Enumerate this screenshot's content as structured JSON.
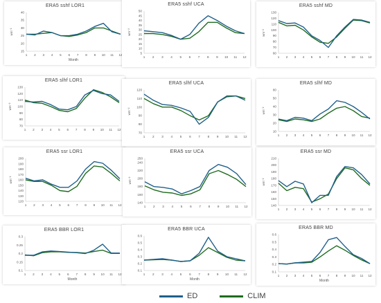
{
  "colors": {
    "ED": "#1f5f8b",
    "CLIM": "#1e6b1e"
  },
  "legend": [
    {
      "name": "ED",
      "color": "#1f5f8b"
    },
    {
      "name": "CLIM",
      "color": "#1e6b1e"
    }
  ],
  "chart_data": [
    {
      "type": "line",
      "title": "ERA5 sshf LOR1",
      "xlabel": "Month",
      "ylabel": "wm⁻²",
      "x": [
        1,
        2,
        3,
        4,
        5,
        6,
        7,
        8,
        9,
        10,
        11,
        12
      ],
      "ylim": [
        15,
        40
      ],
      "yticks": [
        "15",
        "20",
        "25",
        "30",
        "35",
        "40"
      ],
      "grid": false,
      "series": [
        {
          "name": "ED",
          "values": [
            26,
            25.5,
            28,
            27,
            25,
            25,
            26,
            28,
            31,
            33,
            27.5,
            26
          ]
        },
        {
          "name": "CLIM",
          "values": [
            26,
            26,
            26.5,
            27,
            25,
            24.5,
            25.5,
            27,
            30,
            30,
            28,
            26
          ]
        }
      ]
    },
    {
      "type": "line",
      "title": "ERA5 sshf UCA",
      "xlabel": "",
      "ylabel": "wm⁻²",
      "x": [
        1,
        2,
        3,
        4,
        5,
        6,
        7,
        8,
        9,
        10,
        11,
        12
      ],
      "ylim": [
        5,
        50
      ],
      "yticks": [
        "5",
        "10",
        "15",
        "20",
        "25",
        "30",
        "35",
        "40",
        "45",
        "50"
      ],
      "grid": false,
      "series": [
        {
          "name": "ED",
          "values": [
            29,
            28,
            27,
            24,
            20,
            25,
            37,
            45,
            40,
            34,
            29,
            26
          ]
        },
        {
          "name": "CLIM",
          "values": [
            26,
            26,
            25,
            23,
            20,
            21,
            28,
            38,
            38,
            32,
            27,
            26
          ]
        }
      ]
    },
    {
      "type": "line",
      "title": "ERA5 sshf MD",
      "xlabel": "",
      "ylabel": "wm⁻²",
      "x": [
        1,
        2,
        3,
        4,
        5,
        6,
        7,
        8,
        9,
        10,
        11,
        12
      ],
      "ylim": [
        60,
        130
      ],
      "yticks": [
        "60",
        "70",
        "80",
        "90",
        "100",
        "110",
        "120",
        "130"
      ],
      "grid": false,
      "series": [
        {
          "name": "ED",
          "values": [
            116,
            111,
            112,
            105,
            90,
            82,
            70,
            90,
            105,
            118,
            117,
            113
          ]
        },
        {
          "name": "CLIM",
          "values": [
            113,
            107,
            108,
            100,
            88,
            79,
            77,
            88,
            103,
            117,
            116,
            112
          ]
        }
      ]
    },
    {
      "type": "line",
      "title": "ERA5 slhf LOR1",
      "xlabel": "",
      "ylabel": "wm⁻²",
      "x": [
        1,
        2,
        3,
        4,
        5,
        6,
        7,
        8,
        9,
        10,
        11,
        12
      ],
      "ylim": [
        70,
        130
      ],
      "yticks": [
        "70",
        "80",
        "90",
        "100",
        "110",
        "120",
        "130"
      ],
      "grid": false,
      "series": [
        {
          "name": "ED",
          "values": [
            108,
            107,
            108,
            103,
            96,
            95,
            100,
            118,
            125,
            120,
            118,
            108
          ]
        },
        {
          "name": "CLIM",
          "values": [
            110,
            106,
            105,
            100,
            94,
            92,
            97,
            113,
            126,
            122,
            115,
            106
          ]
        }
      ]
    },
    {
      "type": "line",
      "title": "ERA5 slhf UCA",
      "xlabel": "",
      "ylabel": "wm⁻²",
      "x": [
        1,
        2,
        3,
        4,
        5,
        6,
        7,
        8,
        9,
        10,
        11,
        12
      ],
      "ylim": [
        70,
        120
      ],
      "yticks": [
        "70",
        "80",
        "90",
        "100",
        "110",
        "120"
      ],
      "grid": false,
      "series": [
        {
          "name": "ED",
          "values": [
            115,
            108,
            103,
            102,
            99,
            95,
            80,
            88,
            106,
            113,
            113,
            108
          ]
        },
        {
          "name": "CLIM",
          "values": [
            110,
            104,
            100,
            100,
            96,
            90,
            85,
            90,
            106,
            112,
            113,
            110
          ]
        }
      ]
    },
    {
      "type": "line",
      "title": "ERA5 slhf MD",
      "xlabel": "",
      "ylabel": "wm⁻²",
      "x": [
        1,
        2,
        3,
        4,
        5,
        6,
        7,
        8,
        9,
        10,
        11,
        12
      ],
      "ylim": [
        10,
        60
      ],
      "yticks": [
        "10",
        "20",
        "30",
        "40",
        "50",
        "60"
      ],
      "grid": false,
      "series": [
        {
          "name": "ED",
          "values": [
            25,
            23,
            27,
            26,
            23,
            31,
            37,
            47,
            45,
            40,
            33,
            25
          ]
        },
        {
          "name": "CLIM",
          "values": [
            24,
            22,
            25,
            24,
            22,
            25,
            32,
            38,
            40,
            35,
            28,
            26
          ]
        }
      ]
    },
    {
      "type": "line",
      "title": "ERA5 ssr LOR1",
      "xlabel": "",
      "ylabel": "wm⁻²",
      "x": [
        1,
        2,
        3,
        4,
        5,
        6,
        7,
        8,
        9,
        10,
        11,
        12
      ],
      "ylim": [
        120,
        200
      ],
      "yticks": [
        "120",
        "130",
        "140",
        "150",
        "160",
        "170",
        "180",
        "190",
        "200"
      ],
      "grid": false,
      "series": [
        {
          "name": "ED",
          "values": [
            163,
            158,
            160,
            152,
            146,
            146,
            158,
            180,
            194,
            191,
            178,
            162
          ]
        },
        {
          "name": "CLIM",
          "values": [
            160,
            157,
            157,
            150,
            140,
            138,
            148,
            172,
            186,
            184,
            172,
            158
          ]
        }
      ]
    },
    {
      "type": "line",
      "title": "ERA5 ssr UCA",
      "xlabel": "",
      "ylabel": "wm⁻²",
      "x": [
        1,
        2,
        3,
        4,
        5,
        6,
        7,
        8,
        9,
        10,
        11,
        12
      ],
      "ylim": [
        140,
        250
      ],
      "yticks": [
        "140",
        "160",
        "180",
        "200",
        "220",
        "240",
        "250"
      ],
      "grid": false,
      "series": [
        {
          "name": "ED",
          "values": [
            192,
            180,
            178,
            174,
            162,
            170,
            180,
            220,
            235,
            228,
            212,
            185
          ]
        },
        {
          "name": "CLIM",
          "values": [
            182,
            172,
            166,
            164,
            158,
            162,
            172,
            212,
            220,
            210,
            198,
            180
          ]
        }
      ]
    },
    {
      "type": "line",
      "title": "ERA5 ssr MD",
      "xlabel": "",
      "ylabel": "wm⁻²",
      "x": [
        1,
        2,
        3,
        4,
        5,
        6,
        7,
        8,
        9,
        10,
        11,
        12
      ],
      "ylim": [
        140,
        210
      ],
      "yticks": [
        "140",
        "150",
        "160",
        "170",
        "180",
        "190",
        "200",
        "210"
      ],
      "grid": false,
      "series": [
        {
          "name": "ED",
          "values": [
            177,
            168,
            176,
            172,
            144,
            155,
            155,
            183,
            198,
            196,
            186,
            172
          ]
        },
        {
          "name": "CLIM",
          "values": [
            173,
            162,
            167,
            165,
            145,
            150,
            157,
            180,
            196,
            193,
            180,
            170
          ]
        }
      ]
    },
    {
      "type": "line",
      "title": "ERA5 BBR LOR1",
      "xlabel": "Month",
      "ylabel": "",
      "x": [
        1,
        2,
        3,
        4,
        5,
        6,
        7,
        8,
        9,
        10,
        11,
        12
      ],
      "ylim": [
        0.1,
        0.3
      ],
      "yticks": [
        "0.1",
        "0.15",
        "0.2",
        "0.25",
        "0.3"
      ],
      "grid": false,
      "series": [
        {
          "name": "ED",
          "values": [
            0.19,
            0.19,
            0.21,
            0.215,
            0.212,
            0.208,
            0.205,
            0.2,
            0.22,
            0.255,
            0.203,
            0.203
          ]
        },
        {
          "name": "CLIM",
          "values": [
            0.192,
            0.187,
            0.205,
            0.21,
            0.21,
            0.207,
            0.206,
            0.203,
            0.212,
            0.22,
            0.201,
            0.201
          ]
        }
      ]
    },
    {
      "type": "line",
      "title": "ERA5 BBR UCA",
      "xlabel": "Month",
      "ylabel": "",
      "x": [
        1,
        2,
        3,
        4,
        5,
        6,
        7,
        8,
        9,
        10,
        11,
        12
      ],
      "ylim": [
        0.1,
        0.6
      ],
      "yticks": [
        "0.1",
        "0.2",
        "0.3",
        "0.4",
        "0.5",
        "0.6"
      ],
      "grid": false,
      "series": [
        {
          "name": "ED",
          "values": [
            0.25,
            0.26,
            0.27,
            0.25,
            0.23,
            0.24,
            0.35,
            0.58,
            0.38,
            0.3,
            0.27,
            0.24
          ]
        },
        {
          "name": "CLIM",
          "values": [
            0.25,
            0.255,
            0.26,
            0.25,
            0.23,
            0.24,
            0.32,
            0.43,
            0.36,
            0.29,
            0.25,
            0.24
          ]
        }
      ]
    },
    {
      "type": "line",
      "title": "ERA5 BBR MD",
      "xlabel": "Month",
      "ylabel": "",
      "x": [
        1,
        2,
        3,
        4,
        5,
        6,
        7,
        8,
        9,
        10,
        11,
        12
      ],
      "ylim": [
        0.1,
        0.6
      ],
      "yticks": [
        "0.1",
        "0.2",
        "0.3",
        "0.4",
        "0.5",
        "0.6"
      ],
      "grid": false,
      "series": [
        {
          "name": "ED",
          "values": [
            0.21,
            0.205,
            0.22,
            0.23,
            0.24,
            0.36,
            0.53,
            0.56,
            0.44,
            0.33,
            0.28,
            0.21
          ]
        },
        {
          "name": "CLIM",
          "values": [
            0.21,
            0.205,
            0.22,
            0.22,
            0.23,
            0.3,
            0.38,
            0.45,
            0.39,
            0.32,
            0.26,
            0.21
          ]
        }
      ]
    }
  ]
}
